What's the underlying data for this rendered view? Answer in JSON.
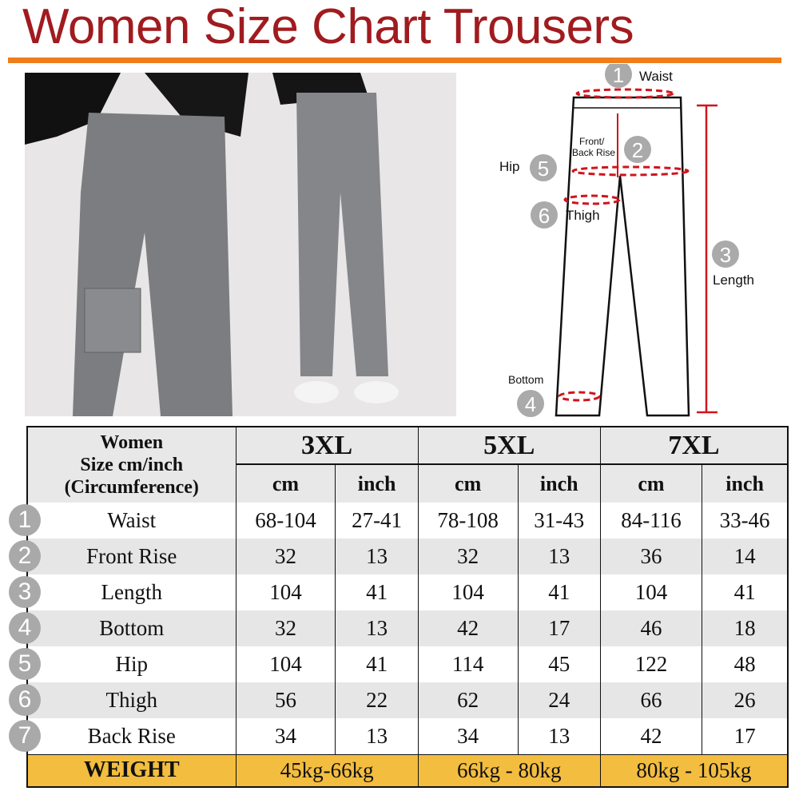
{
  "title": "Women Size Chart Trousers",
  "colors": {
    "title": "#a01b1f",
    "rule": "#ef7d1a",
    "weight_row": "#f3bd3f",
    "measure_line": "#d0141c",
    "badge": "#a9a9a9"
  },
  "diagram": {
    "labels": [
      {
        "num": "1",
        "text": "Waist"
      },
      {
        "num": "2",
        "text": "Front/ Back Rise",
        "line1": "Front/",
        "line2": "Back Rise"
      },
      {
        "num": "3",
        "text": "Length"
      },
      {
        "num": "4",
        "text": "Bottom"
      },
      {
        "num": "5",
        "text": "Hip"
      },
      {
        "num": "6",
        "text": "Thigh"
      }
    ]
  },
  "table": {
    "corner": [
      "Women",
      "Size cm/inch",
      "(Circumference)"
    ],
    "sizes": [
      "3XL",
      "5XL",
      "7XL"
    ],
    "units": [
      "cm",
      "inch"
    ],
    "rows": [
      {
        "num": "1",
        "name": "Waist",
        "values": [
          "68-104",
          "27-41",
          "78-108",
          "31-43",
          "84-116",
          "33-46"
        ]
      },
      {
        "num": "2",
        "name": "Front Rise",
        "values": [
          "32",
          "13",
          "32",
          "13",
          "36",
          "14"
        ]
      },
      {
        "num": "3",
        "name": "Length",
        "values": [
          "104",
          "41",
          "104",
          "41",
          "104",
          "41"
        ]
      },
      {
        "num": "4",
        "name": "Bottom",
        "values": [
          "32",
          "13",
          "42",
          "17",
          "46",
          "18"
        ]
      },
      {
        "num": "5",
        "name": "Hip",
        "values": [
          "104",
          "41",
          "114",
          "45",
          "122",
          "48"
        ]
      },
      {
        "num": "6",
        "name": "Thigh",
        "values": [
          "56",
          "22",
          "62",
          "24",
          "66",
          "26"
        ]
      },
      {
        "num": "7",
        "name": "Back Rise",
        "values": [
          "34",
          "13",
          "34",
          "13",
          "42",
          "17"
        ]
      }
    ],
    "weight": {
      "label": "WEIGHT",
      "values": [
        "45kg-66kg",
        "66kg - 80kg",
        "80kg - 105kg"
      ]
    }
  }
}
